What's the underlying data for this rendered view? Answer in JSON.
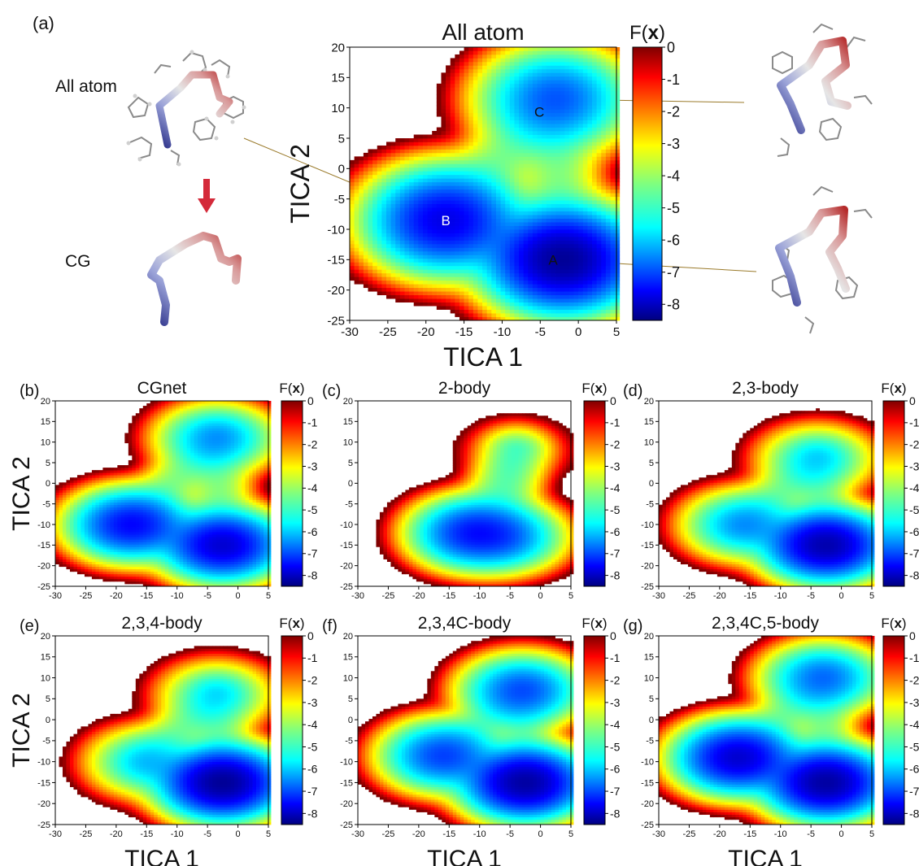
{
  "panel_letters": [
    "(a)",
    "(b)",
    "(c)",
    "(d)",
    "(e)",
    "(f)",
    "(g)"
  ],
  "molecule_labels": {
    "all_atom": "All atom",
    "cg": "CG"
  },
  "colorbar": {
    "label_prefix": "F(",
    "label_symbol": "x",
    "label_suffix": ")",
    "ticks_main": [
      "0",
      "-1",
      "-2",
      "-3",
      "-4",
      "-5",
      "-6",
      "-7",
      "-8"
    ],
    "ticks_small": [
      "0",
      "-1",
      "-2",
      "-3",
      "-4",
      "-5",
      "-6",
      "-7",
      "-8"
    ],
    "colormap": "jet",
    "vmin": -8.5,
    "vmax": 0
  },
  "chart_data": [
    {
      "id": "a",
      "type": "heatmap",
      "title": "All atom",
      "xlabel": "TICA 1",
      "ylabel": "TICA 2",
      "xlim": [
        -30,
        5
      ],
      "ylim": [
        -25,
        20
      ],
      "xticks": [
        "-30",
        "-25",
        "-20",
        "-15",
        "-10",
        "-5",
        "0",
        "5"
      ],
      "yticks": [
        "-25",
        "-20",
        "-15",
        "-10",
        "-5",
        "0",
        "5",
        "10",
        "15",
        "20"
      ],
      "annotations": [
        {
          "text": "A",
          "x": -2,
          "y": -15
        },
        {
          "text": "B",
          "x": -18,
          "y": -8.5
        },
        {
          "text": "C",
          "x": -3,
          "y": 11.5
        }
      ],
      "basins": [
        {
          "x": -17.5,
          "y": -8.5,
          "depth": 7.6
        },
        {
          "x": -2,
          "y": -15,
          "depth": 8.3
        },
        {
          "x": -3,
          "y": 11.5,
          "depth": 6.6
        }
      ]
    },
    {
      "id": "b",
      "type": "heatmap",
      "title": "CGnet",
      "xlabel": "",
      "ylabel": "TICA 2",
      "xlim": [
        -30,
        5
      ],
      "ylim": [
        -25,
        20
      ],
      "xticks": [
        "-30",
        "-25",
        "-20",
        "-15",
        "-10",
        "-5",
        "0",
        "5"
      ],
      "yticks": [
        "-25",
        "-20",
        "-15",
        "-10",
        "-5",
        "0",
        "5",
        "10",
        "15",
        "20"
      ],
      "basins": [
        {
          "x": -17.5,
          "y": -10,
          "depth": 7.4
        },
        {
          "x": -2.5,
          "y": -15,
          "depth": 7.8
        },
        {
          "x": -3.5,
          "y": 11,
          "depth": 6.0
        }
      ]
    },
    {
      "id": "c",
      "type": "heatmap",
      "title": "2-body",
      "xlabel": "",
      "ylabel": "",
      "xlim": [
        -30,
        5
      ],
      "ylim": [
        -25,
        20
      ],
      "xticks": [
        "-30",
        "-25",
        "-20",
        "-15",
        "-10",
        "-5",
        "0",
        "5"
      ],
      "yticks": [
        "-25",
        "-20",
        "-15",
        "-10",
        "-5",
        "0",
        "5",
        "10",
        "15",
        "20"
      ],
      "basins": [
        {
          "x": -11,
          "y": -12,
          "depth": 7.4
        },
        {
          "x": -6,
          "y": -13,
          "depth": 6.5
        },
        {
          "x": -4,
          "y": 8,
          "depth": 3.0
        }
      ]
    },
    {
      "id": "d",
      "type": "heatmap",
      "title": "2,3-body",
      "xlabel": "",
      "ylabel": "",
      "xlim": [
        -30,
        5
      ],
      "ylim": [
        -25,
        20
      ],
      "xticks": [
        "-30",
        "-25",
        "-20",
        "-15",
        "-10",
        "-5",
        "0",
        "5"
      ],
      "yticks": [
        "-25",
        "-20",
        "-15",
        "-10",
        "-5",
        "0",
        "5",
        "10",
        "15",
        "20"
      ],
      "basins": [
        {
          "x": -16,
          "y": -10,
          "depth": 6.0
        },
        {
          "x": -2.5,
          "y": -15,
          "depth": 8.1
        },
        {
          "x": -4,
          "y": 6,
          "depth": 5.2
        }
      ]
    },
    {
      "id": "e",
      "type": "heatmap",
      "title": "2,3,4-body",
      "xlabel": "TICA 1",
      "ylabel": "TICA 2",
      "xlim": [
        -30,
        5
      ],
      "ylim": [
        -25,
        20
      ],
      "xticks": [
        "-30",
        "-25",
        "-20",
        "-15",
        "-10",
        "-5",
        "0",
        "5"
      ],
      "yticks": [
        "-25",
        "-20",
        "-15",
        "-10",
        "-5",
        "0",
        "5",
        "10",
        "15",
        "20"
      ],
      "basins": [
        {
          "x": -15,
          "y": -10,
          "depth": 5.4
        },
        {
          "x": -2.5,
          "y": -15,
          "depth": 8.3
        },
        {
          "x": -3.5,
          "y": 6,
          "depth": 5.0
        }
      ]
    },
    {
      "id": "f",
      "type": "heatmap",
      "title": "2,3,4C-body",
      "xlabel": "TICA 1",
      "ylabel": "",
      "xlim": [
        -30,
        5
      ],
      "ylim": [
        -25,
        20
      ],
      "xticks": [
        "-30",
        "-25",
        "-20",
        "-15",
        "-10",
        "-5",
        "0",
        "5"
      ],
      "yticks": [
        "-25",
        "-20",
        "-15",
        "-10",
        "-5",
        "0",
        "5",
        "10",
        "15",
        "20"
      ],
      "basins": [
        {
          "x": -16,
          "y": -8.5,
          "depth": 6.8
        },
        {
          "x": -2.5,
          "y": -15,
          "depth": 8.2
        },
        {
          "x": -3,
          "y": 7,
          "depth": 6.7
        }
      ]
    },
    {
      "id": "g",
      "type": "heatmap",
      "title": "2,3,4C,5-body",
      "xlabel": "TICA 1",
      "ylabel": "",
      "xlim": [
        -30,
        5
      ],
      "ylim": [
        -25,
        20
      ],
      "xticks": [
        "-30",
        "-25",
        "-20",
        "-15",
        "-10",
        "-5",
        "0",
        "5"
      ],
      "yticks": [
        "-25",
        "-20",
        "-15",
        "-10",
        "-5",
        "0",
        "5",
        "10",
        "15",
        "20"
      ],
      "basins": [
        {
          "x": -17,
          "y": -9,
          "depth": 7.8
        },
        {
          "x": -2.5,
          "y": -15,
          "depth": 8.2
        },
        {
          "x": -3,
          "y": 10,
          "depth": 6.4
        }
      ]
    }
  ]
}
